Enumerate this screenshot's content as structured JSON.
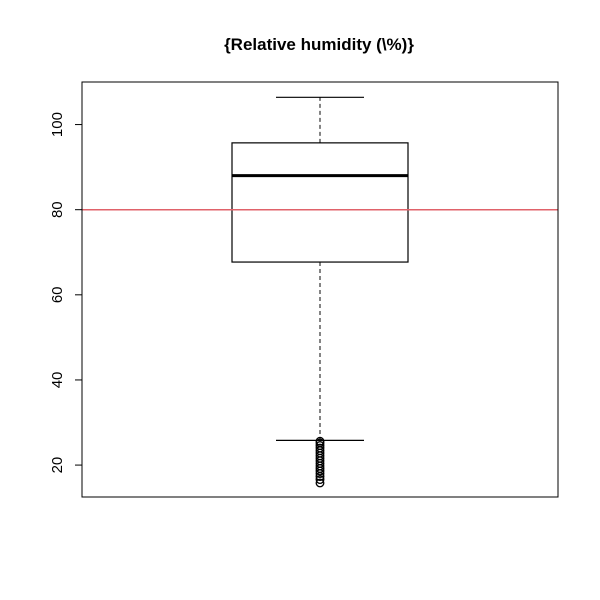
{
  "chart_data": {
    "type": "boxplot",
    "title": "{Relative humidity (\\%)}",
    "xlabel": "",
    "ylabel": "",
    "ylim": [
      12.5,
      110
    ],
    "yticks": [
      20,
      40,
      60,
      80,
      100
    ],
    "grid": false,
    "box": {
      "min_whisker": 25.8,
      "q1": 67.7,
      "median": 88.0,
      "q3": 95.7,
      "max_whisker": 106.4
    },
    "outliers": [
      15.8,
      16.6,
      17.3,
      18.0,
      18.6,
      19.2,
      19.8,
      20.4,
      21.0,
      21.6,
      22.2,
      22.8,
      23.4,
      24.0,
      24.6,
      25.2,
      25.6
    ],
    "reference_line": {
      "y": 80,
      "color": "#e0626a"
    },
    "colors": {
      "box": "#000000",
      "whisker": "#333333",
      "median": "#000000"
    }
  }
}
